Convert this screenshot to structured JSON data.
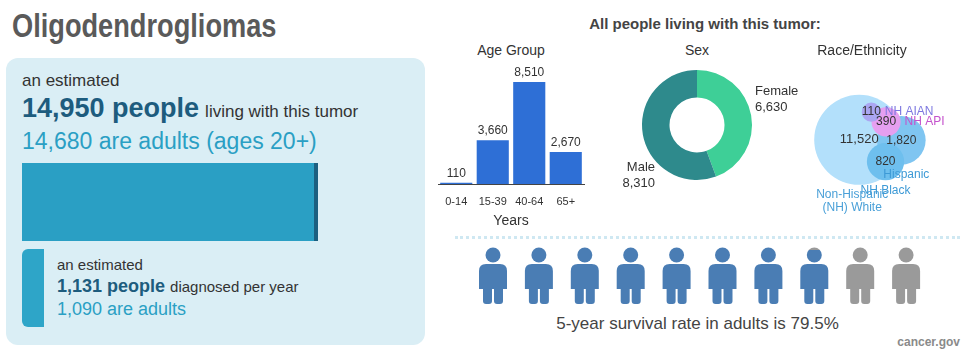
{
  "title": "Oligodendrogliomas",
  "prevalence": {
    "intro": "an estimated",
    "count": 14950,
    "count_label": "14,950 people",
    "text": "living with this tumor",
    "adults_label": "14,680 are adults (ages 20+)"
  },
  "incidence": {
    "intro": "an estimated",
    "count": 1131,
    "count_label": "1,131 people",
    "text": "diagnosed per year",
    "adults_label": "1,090 are adults"
  },
  "panel_title": "All people living with this tumor:",
  "chart_data": [
    {
      "type": "bar",
      "title": "Age Group",
      "x_label": "Years",
      "categories": [
        "0-14",
        "15-39",
        "40-64",
        "65+"
      ],
      "values": [
        110,
        3660,
        8510,
        2670
      ],
      "value_labels": [
        "110",
        "3,660",
        "8,510",
        "2,670"
      ],
      "color": "#2e6fd6",
      "ylim": [
        0,
        8510
      ],
      "data_labels": true,
      "tick_labels": "x",
      "grid": false
    },
    {
      "type": "doughnut",
      "title": "Sex",
      "categories": [
        "Female",
        "Male"
      ],
      "values": [
        6630,
        8310
      ],
      "value_labels": [
        "6,630",
        "8,310"
      ],
      "colors": [
        "#3ecf97",
        "#2e8a8c"
      ],
      "data_labels": true
    },
    {
      "type": "bubble",
      "title": "Race/Ethnicity",
      "categories": [
        "Non-Hispanic (NH) White",
        "Hispanic",
        "NH Black",
        "NH API",
        "NH AIAN"
      ],
      "values": [
        11520,
        1820,
        820,
        390,
        110
      ],
      "value_labels": [
        "11,520",
        "1,820",
        "820",
        "390",
        "110"
      ],
      "colors": [
        "#b3e0fb",
        "#7fc5f1",
        "#6ebfee",
        "#e69ff0",
        "#aaa6f2"
      ],
      "data_labels": true
    }
  ],
  "survival": {
    "text": "5-year survival rate in adults is 79.5%",
    "value": 79.5
  },
  "source": "cancer.gov"
}
